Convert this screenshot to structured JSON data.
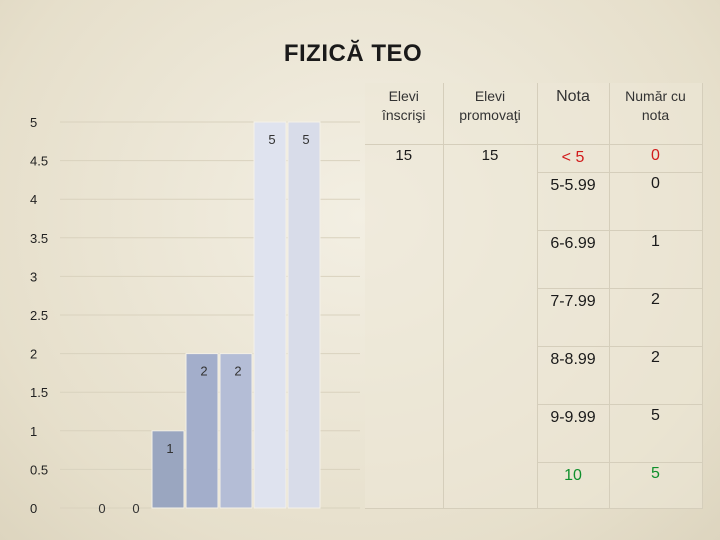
{
  "slide": {
    "title": "FIZICĂ TEO"
  },
  "chart_data": {
    "type": "bar",
    "ylim": [
      0,
      5
    ],
    "yticks": [
      0,
      0.5,
      1,
      1.5,
      2,
      2.5,
      3,
      3.5,
      4,
      4.5,
      5
    ],
    "ytick_labels": [
      "0",
      "0.5",
      "1",
      "1.5",
      "2",
      "2.5",
      "3",
      "3.5",
      "4",
      "4.5",
      "5"
    ],
    "series": [
      {
        "values": [
          0,
          0,
          1,
          2,
          2,
          5,
          5
        ],
        "labels": [
          "0",
          "0",
          "1",
          "2",
          "2",
          "5",
          "5"
        ],
        "colors": [
          "#9aa6c0",
          "#9aa6c0",
          "#9aa6c0",
          "#a3aecb",
          "#b4bdd6",
          "#dfe3ef",
          "#d8dce9"
        ]
      }
    ]
  },
  "table": {
    "headers": {
      "enrolled": "Elevi înscrişi",
      "promoted": "Elevi promovaţi",
      "grade": "Nota",
      "count": "Număr cu nota"
    },
    "enrolled": "15",
    "promoted": "15",
    "rows": [
      {
        "grade": "< 5",
        "count": "0"
      },
      {
        "grade": "5-5.99",
        "count": "0"
      },
      {
        "grade": "6-6.99",
        "count": "1"
      },
      {
        "grade": "7-7.99",
        "count": "2"
      },
      {
        "grade": "8-8.99",
        "count": "2"
      },
      {
        "grade": "9-9.99",
        "count": "5"
      },
      {
        "grade": "10",
        "count": "5"
      }
    ],
    "colors": {
      "below_five": "#d11b1b",
      "ten": "#0f8f2c"
    }
  }
}
